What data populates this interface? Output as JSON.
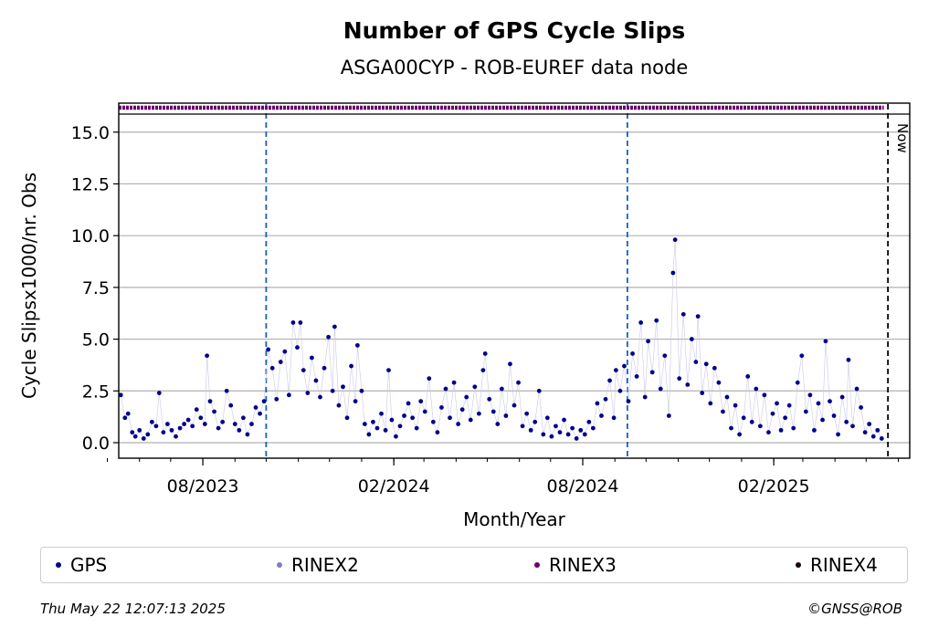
{
  "chart_data": {
    "type": "scatter",
    "title": "Number of GPS Cycle Slips",
    "subtitle": "ASGA00CYP - ROB-EUREF data node",
    "xlabel": "Month/Year",
    "ylabel": "Cycle Slipsx1000/nr. Obs",
    "ylim": [
      -0.75,
      16.4
    ],
    "yticks": [
      "0.0",
      "2.5",
      "5.0",
      "7.5",
      "10.0",
      "12.5",
      "15.0"
    ],
    "xticks": [
      "08/2023",
      "02/2024",
      "08/2024",
      "02/2025"
    ],
    "x_range": [
      "2023-05-12",
      "2025-06-12"
    ],
    "vlines": [
      {
        "date": "2023-10-01",
        "style": "blue-dashed"
      },
      {
        "date": "2024-09-13",
        "style": "blue-dashed"
      },
      {
        "date": "2025-05-22",
        "style": "black-dashed",
        "label": "Now"
      }
    ],
    "rinex3_band": {
      "start": "2023-05-12",
      "end": "2025-05-18",
      "y": 16.4
    },
    "grid": true,
    "legend_position": "bottom",
    "series": [
      {
        "name": "GPS",
        "color": "#00008b",
        "points": [
          [
            "2023-05-14",
            2.3
          ],
          [
            "2023-05-18",
            1.2
          ],
          [
            "2023-05-21",
            1.4
          ],
          [
            "2023-05-25",
            0.5
          ],
          [
            "2023-05-28",
            0.3
          ],
          [
            "2023-06-01",
            0.6
          ],
          [
            "2023-06-05",
            0.2
          ],
          [
            "2023-06-09",
            0.4
          ],
          [
            "2023-06-13",
            1.0
          ],
          [
            "2023-06-17",
            0.8
          ],
          [
            "2023-06-20",
            2.4
          ],
          [
            "2023-06-24",
            0.5
          ],
          [
            "2023-06-28",
            0.9
          ],
          [
            "2023-07-02",
            0.6
          ],
          [
            "2023-07-06",
            0.3
          ],
          [
            "2023-07-10",
            0.7
          ],
          [
            "2023-07-14",
            0.9
          ],
          [
            "2023-07-18",
            1.1
          ],
          [
            "2023-07-22",
            0.8
          ],
          [
            "2023-07-26",
            1.6
          ],
          [
            "2023-07-30",
            1.2
          ],
          [
            "2023-08-03",
            0.9
          ],
          [
            "2023-08-05",
            4.2
          ],
          [
            "2023-08-08",
            2.0
          ],
          [
            "2023-08-12",
            1.5
          ],
          [
            "2023-08-16",
            0.7
          ],
          [
            "2023-08-20",
            1.0
          ],
          [
            "2023-08-24",
            2.5
          ],
          [
            "2023-08-28",
            1.8
          ],
          [
            "2023-09-01",
            0.9
          ],
          [
            "2023-09-05",
            0.6
          ],
          [
            "2023-09-09",
            1.2
          ],
          [
            "2023-09-13",
            0.4
          ],
          [
            "2023-09-17",
            0.9
          ],
          [
            "2023-09-21",
            1.7
          ],
          [
            "2023-09-25",
            1.4
          ],
          [
            "2023-09-29",
            2.0
          ],
          [
            "2023-10-03",
            4.5
          ],
          [
            "2023-10-07",
            3.6
          ],
          [
            "2023-10-11",
            2.1
          ],
          [
            "2023-10-15",
            3.9
          ],
          [
            "2023-10-19",
            4.4
          ],
          [
            "2023-10-23",
            2.3
          ],
          [
            "2023-10-27",
            5.8
          ],
          [
            "2023-10-31",
            4.6
          ],
          [
            "2023-11-03",
            5.8
          ],
          [
            "2023-11-06",
            3.5
          ],
          [
            "2023-11-10",
            2.4
          ],
          [
            "2023-11-14",
            4.1
          ],
          [
            "2023-11-18",
            3.0
          ],
          [
            "2023-11-22",
            2.2
          ],
          [
            "2023-11-26",
            3.6
          ],
          [
            "2023-11-30",
            5.1
          ],
          [
            "2023-12-04",
            2.5
          ],
          [
            "2023-12-06",
            5.6
          ],
          [
            "2023-12-10",
            1.8
          ],
          [
            "2023-12-14",
            2.7
          ],
          [
            "2023-12-18",
            1.2
          ],
          [
            "2023-12-22",
            3.7
          ],
          [
            "2023-12-26",
            2.0
          ],
          [
            "2023-12-28",
            4.7
          ],
          [
            "2024-01-01",
            2.5
          ],
          [
            "2024-01-04",
            0.9
          ],
          [
            "2024-01-08",
            0.4
          ],
          [
            "2024-01-12",
            1.0
          ],
          [
            "2024-01-16",
            0.7
          ],
          [
            "2024-01-20",
            1.4
          ],
          [
            "2024-01-24",
            0.6
          ],
          [
            "2024-01-27",
            3.5
          ],
          [
            "2024-01-30",
            1.1
          ],
          [
            "2024-02-03",
            0.3
          ],
          [
            "2024-02-07",
            0.8
          ],
          [
            "2024-02-11",
            1.3
          ],
          [
            "2024-02-15",
            1.9
          ],
          [
            "2024-02-19",
            1.2
          ],
          [
            "2024-02-23",
            0.7
          ],
          [
            "2024-02-27",
            2.0
          ],
          [
            "2024-03-02",
            1.5
          ],
          [
            "2024-03-06",
            3.1
          ],
          [
            "2024-03-10",
            1.0
          ],
          [
            "2024-03-14",
            0.5
          ],
          [
            "2024-03-18",
            1.7
          ],
          [
            "2024-03-22",
            2.6
          ],
          [
            "2024-03-26",
            1.2
          ],
          [
            "2024-03-30",
            2.9
          ],
          [
            "2024-04-03",
            0.9
          ],
          [
            "2024-04-07",
            1.6
          ],
          [
            "2024-04-11",
            2.2
          ],
          [
            "2024-04-15",
            1.1
          ],
          [
            "2024-04-19",
            2.7
          ],
          [
            "2024-04-23",
            1.4
          ],
          [
            "2024-04-27",
            3.5
          ],
          [
            "2024-04-29",
            4.3
          ],
          [
            "2024-05-03",
            2.1
          ],
          [
            "2024-05-07",
            1.5
          ],
          [
            "2024-05-11",
            0.9
          ],
          [
            "2024-05-15",
            2.6
          ],
          [
            "2024-05-19",
            1.3
          ],
          [
            "2024-05-23",
            3.8
          ],
          [
            "2024-05-27",
            1.8
          ],
          [
            "2024-05-31",
            2.9
          ],
          [
            "2024-06-04",
            0.8
          ],
          [
            "2024-06-08",
            1.4
          ],
          [
            "2024-06-12",
            0.6
          ],
          [
            "2024-06-16",
            1.0
          ],
          [
            "2024-06-20",
            2.5
          ],
          [
            "2024-06-24",
            0.4
          ],
          [
            "2024-06-28",
            1.2
          ],
          [
            "2024-07-02",
            0.3
          ],
          [
            "2024-07-06",
            0.8
          ],
          [
            "2024-07-10",
            0.5
          ],
          [
            "2024-07-14",
            1.1
          ],
          [
            "2024-07-18",
            0.4
          ],
          [
            "2024-07-22",
            0.7
          ],
          [
            "2024-07-26",
            0.2
          ],
          [
            "2024-07-30",
            0.6
          ],
          [
            "2024-08-03",
            0.4
          ],
          [
            "2024-08-07",
            1.0
          ],
          [
            "2024-08-11",
            0.7
          ],
          [
            "2024-08-15",
            1.9
          ],
          [
            "2024-08-19",
            1.3
          ],
          [
            "2024-08-23",
            2.1
          ],
          [
            "2024-08-27",
            3.0
          ],
          [
            "2024-08-31",
            1.2
          ],
          [
            "2024-09-02",
            3.5
          ],
          [
            "2024-09-06",
            2.5
          ],
          [
            "2024-09-10",
            3.7
          ],
          [
            "2024-09-14",
            2.0
          ],
          [
            "2024-09-18",
            4.3
          ],
          [
            "2024-09-22",
            3.2
          ],
          [
            "2024-09-26",
            5.8
          ],
          [
            "2024-09-30",
            2.2
          ],
          [
            "2024-10-03",
            4.9
          ],
          [
            "2024-10-07",
            3.4
          ],
          [
            "2024-10-11",
            5.9
          ],
          [
            "2024-10-15",
            2.6
          ],
          [
            "2024-10-19",
            4.2
          ],
          [
            "2024-10-23",
            1.3
          ],
          [
            "2024-10-27",
            8.2
          ],
          [
            "2024-10-29",
            9.8
          ],
          [
            "2024-11-02",
            3.1
          ],
          [
            "2024-11-06",
            6.2
          ],
          [
            "2024-11-10",
            2.8
          ],
          [
            "2024-11-14",
            5.0
          ],
          [
            "2024-11-18",
            3.9
          ],
          [
            "2024-11-20",
            6.1
          ],
          [
            "2024-11-24",
            2.4
          ],
          [
            "2024-11-28",
            3.8
          ],
          [
            "2024-12-02",
            1.9
          ],
          [
            "2024-12-06",
            3.6
          ],
          [
            "2024-12-10",
            2.9
          ],
          [
            "2024-12-14",
            1.5
          ],
          [
            "2024-12-18",
            2.2
          ],
          [
            "2024-12-22",
            0.7
          ],
          [
            "2024-12-26",
            1.8
          ],
          [
            "2024-12-30",
            0.4
          ],
          [
            "2025-01-03",
            1.2
          ],
          [
            "2025-01-07",
            3.2
          ],
          [
            "2025-01-11",
            1.0
          ],
          [
            "2025-01-15",
            2.6
          ],
          [
            "2025-01-19",
            0.8
          ],
          [
            "2025-01-23",
            2.3
          ],
          [
            "2025-01-27",
            0.5
          ],
          [
            "2025-01-31",
            1.4
          ],
          [
            "2025-02-04",
            1.9
          ],
          [
            "2025-02-08",
            0.6
          ],
          [
            "2025-02-12",
            1.2
          ],
          [
            "2025-02-16",
            1.8
          ],
          [
            "2025-02-20",
            0.7
          ],
          [
            "2025-02-24",
            2.9
          ],
          [
            "2025-02-28",
            4.2
          ],
          [
            "2025-03-04",
            1.5
          ],
          [
            "2025-03-08",
            2.3
          ],
          [
            "2025-03-12",
            0.6
          ],
          [
            "2025-03-16",
            1.9
          ],
          [
            "2025-03-20",
            1.1
          ],
          [
            "2025-03-23",
            4.9
          ],
          [
            "2025-03-27",
            2.0
          ],
          [
            "2025-03-31",
            1.3
          ],
          [
            "2025-04-04",
            0.4
          ],
          [
            "2025-04-08",
            2.2
          ],
          [
            "2025-04-12",
            1.0
          ],
          [
            "2025-04-14",
            4.0
          ],
          [
            "2025-04-18",
            0.8
          ],
          [
            "2025-04-22",
            2.6
          ],
          [
            "2025-04-26",
            1.7
          ],
          [
            "2025-04-30",
            0.5
          ],
          [
            "2025-05-04",
            0.9
          ],
          [
            "2025-05-08",
            0.3
          ],
          [
            "2025-05-12",
            0.6
          ],
          [
            "2025-05-16",
            0.2
          ]
        ]
      },
      {
        "name": "RINEX2",
        "color": "#7f7fbf",
        "points": []
      },
      {
        "name": "RINEX3",
        "color": "#6a006a",
        "points": []
      },
      {
        "name": "RINEX4",
        "color": "#1a0010",
        "points": []
      }
    ]
  },
  "footer": {
    "timestamp": "Thu May 22 12:07:13 2025",
    "copyright": "©GNSS@ROB"
  }
}
